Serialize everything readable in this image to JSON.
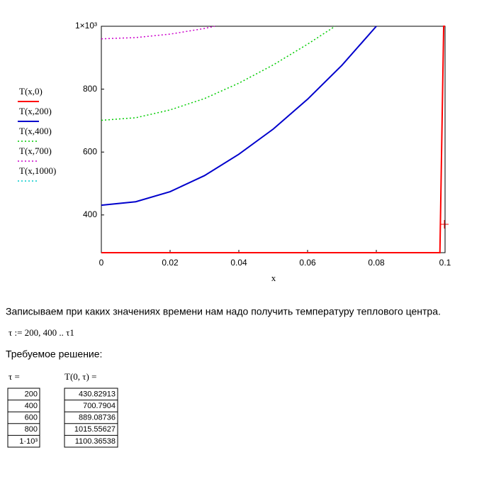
{
  "chart_data": {
    "type": "line",
    "x_label": "x",
    "xlim": [
      0,
      0.1
    ],
    "xticks": [
      0,
      0.02,
      0.04,
      0.06,
      0.08,
      0.1
    ],
    "ylim": [
      280,
      1000
    ],
    "yticks": [
      400,
      600,
      800,
      {
        "value": 1000,
        "label": "1×10³"
      }
    ],
    "series": [
      {
        "name": "T(x,0)",
        "color": "#ff0000",
        "style": "solid",
        "x": [
          0,
          0.0985,
          0.0996,
          0.1
        ],
        "values": [
          280,
          280,
          1000,
          1000
        ]
      },
      {
        "name": "T(x,200)",
        "color": "#0000cc",
        "style": "solid",
        "x": [
          0,
          0.01,
          0.02,
          0.03,
          0.04,
          0.05,
          0.06,
          0.07,
          0.08
        ],
        "values": [
          431,
          442,
          474,
          525,
          593,
          673,
          768,
          876,
          1000
        ]
      },
      {
        "name": "T(x,400)",
        "color": "#00cc00",
        "style": "dotted",
        "x": [
          0,
          0.01,
          0.02,
          0.03,
          0.04,
          0.05,
          0.06,
          0.068
        ],
        "values": [
          701,
          709,
          734,
          770,
          819,
          877,
          943,
          1000
        ]
      },
      {
        "name": "T(x,700)",
        "color": "#cc00cc",
        "style": "dotted",
        "x": [
          0,
          0.01,
          0.02,
          0.03,
          0.033
        ],
        "values": [
          960,
          964,
          975,
          993,
          1000
        ]
      },
      {
        "name": "T(x,1000)",
        "color": "#00cccc",
        "style": "dotted",
        "x": [],
        "values": []
      }
    ]
  },
  "document": {
    "paragraph": "Записываем при каких значениях времени нам надо получить температуру теплового центра.",
    "formula": "τ := 200, 400 .. τ1",
    "caption": "Требуемое решение:",
    "table": {
      "headers": [
        "τ =",
        "T(0, τ) ="
      ],
      "rows": [
        [
          "200",
          "430.82913"
        ],
        [
          "400",
          "700.7904"
        ],
        [
          "600",
          "889.08736"
        ],
        [
          "800",
          "1015.55627"
        ],
        [
          "1·10³",
          "1100.36538"
        ]
      ]
    }
  }
}
